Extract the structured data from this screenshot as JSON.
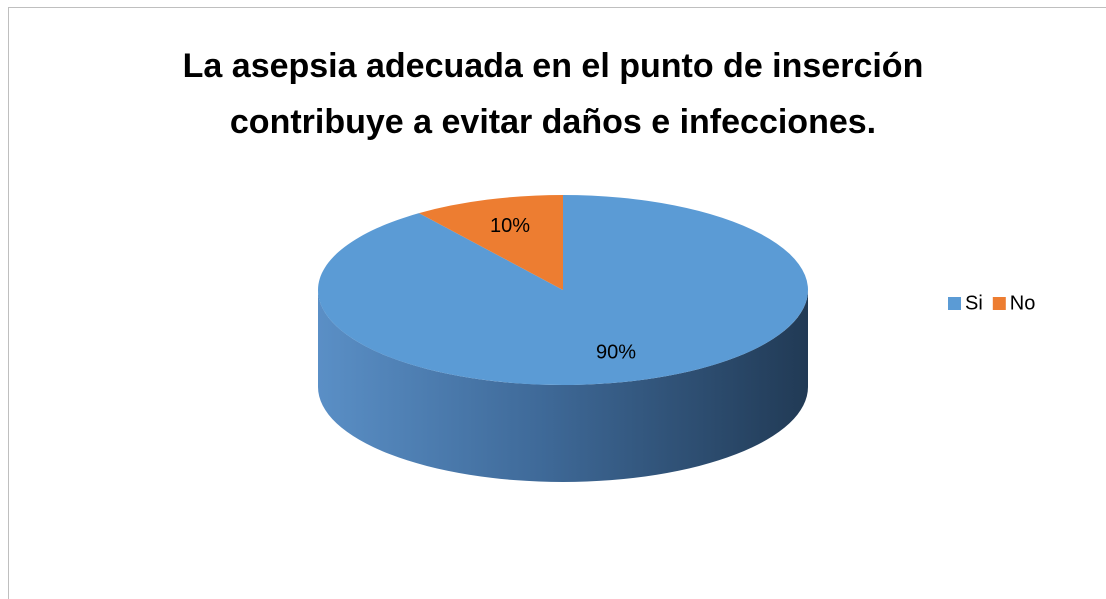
{
  "chart_data": {
    "type": "pie",
    "title": "La asepsia adecuada en el punto de inserción contribuye a evitar daños e infecciones.",
    "categories": [
      "Si",
      "No"
    ],
    "values": [
      90,
      10
    ],
    "value_labels": [
      "90%",
      "10%"
    ],
    "colors": [
      "#5b9bd5",
      "#ed7d31"
    ],
    "legend": "right",
    "style": "3d"
  }
}
